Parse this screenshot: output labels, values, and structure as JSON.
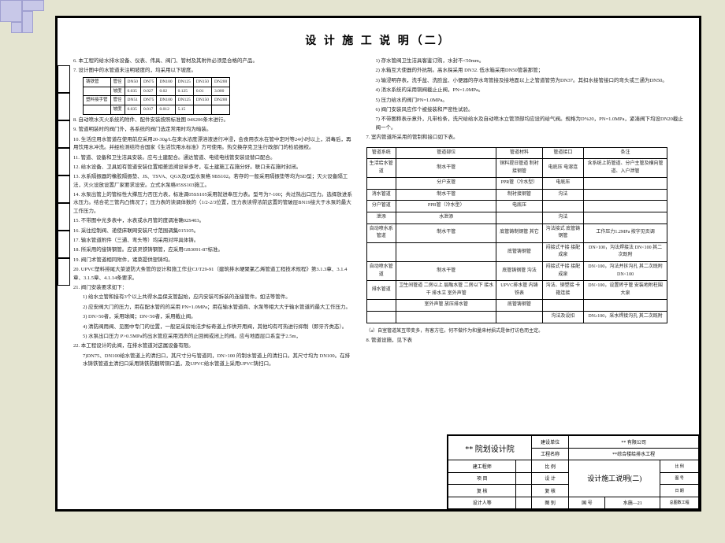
{
  "title": "设 计 施 工 说 明（二）",
  "left": {
    "p6": "6. 本工程的给水排水设备、仪表、伟具、阀门、管材及其附件必须是合格的产品。",
    "p7": "7. 设计图中的水管道未注明坡度的，均采用以下坡度。",
    "t7": {
      "rows": [
        [
          "铸铁管",
          "管径",
          "DN50",
          "DN75",
          "DN100",
          "DN125",
          "DN150",
          "DN200"
        ],
        [
          "",
          "坡度",
          "0.035",
          "0.027",
          "0.02",
          "0.125",
          "0.01",
          "3.000"
        ],
        [
          "塑料接手管",
          "管径",
          "DN51",
          "DN75",
          "DN100",
          "DN125",
          "DN150",
          "DN200"
        ],
        [
          "",
          "坡度",
          "0.035",
          "0.017",
          "0.012",
          "5.15",
          "",
          ""
        ]
      ]
    },
    "p8": "8. 自动喷水灭火系统的附件、配件安装按照标准图 04S206条木进行。",
    "p9": "9. 管道明装时的阀门外，各系统的阀门选定常用时均为暗装。",
    "p10": "10. 生活应用水管道在使用前应采用20-30g/L在来水浓度漂溶液进行冲浸，会食用衣水在管中定时等24小时以上，消毒后，再用饮用水冲洗。并经检测结符合国家《生活饮用水标准》方可使用。热交换存克卫生行政部门的检验报校。",
    "p11": "11. 管道、设备和卫生洁具安装。应与土建配合。通达管道、电缆电线管安装设替口配合。",
    "p12": "12. 给水设备、卫具如有管道安装位置相差追溯设单多考，在土建施工在施分好。联口未在施时封闭。",
    "p13": "13. 水系隔振器的橡胶隔振垫、JS、TSVA、QGX及D型水泵格 9BS102。若存的一般采用隔振垫等均为SD型；灭火设备隔工法，灭火设放设置厂家要求设安。立式水泵格05SS103施工。",
    "p14": "14. 水泵出管上的管标性大撑压力否压力表，标准调05SS105采用就进奉压力表。型号为7-100；共过热出口压力。选择放进系水压力。结合花三管内凸情况了；压力表的读调体数的（1/2-2/3位置，压力表读得浓前这置的管破层BN19接大于水泵的最大工作压力。",
    "p15": "15. 不带图中光多表中，水表或水月管的度调准确02S403。",
    "p16": "16. 采往控制阀、递使床联网安装尺寸范围调集015105。",
    "p17": "17. 输水管道附件（三通、弯头等）均采用对坪具体铸。",
    "p18": "18. 所采用的接铸钢管。应该灵铁铸钢管，应采用GB3091-87标准。",
    "p19": "19. 阀门术管道相同附件，诸菜提供塑铸均。",
    "p20": "20. UPVC塑料排尾大菜波防大条管的设计和施工作业CJ/T29-91（建筑排水硬聚氯乙烯管道工程技术规程》第3.1.3章、3.1.4章、3.1.5章、4.1.14条要求。",
    "p21": "21. 阀门安装要求如下：",
    "p21a": "1) 给水立管和接有3个以上共得水品保支管起始，应内安装可拆装的连接管件。如法等管件。",
    "p21b": "2) 应安阀大门的压力，用在配水管的的采用 PN=1.0MPa；用在输水管道商、水泵等相大大于输水管道的最大工作压力。",
    "p21c": "3) DN>50者，采用球阀；DN<50者，采用截止阀。",
    "p21d": "4) 清防阀用阀、见图中专门的位置，一般足采房始法步标奇道上作供开用阀，其他均有可热进行抑制（即牙齐类态）。",
    "p21e": "5) 水泵出口压力 P>0.5MPa的出水管应采用消声的止回阀或闭上的阀。应与地面层口系宜于2.5m，",
    "p22": "22. 本工程设计的此阀，在排水管道对这属设备有限。",
    "p23": "7)DN75、DN100给水管道上的清扫口，其尺寸分与管道同，DN>100 的制水管道上的清扫口。其尺寸均为 DN100。在排水铸铁管道主清扫口采用铸铁防翻转铜口盖，及UPVC给水管道上采用UPVC铸扫口。"
  },
  "right": {
    "p1": "1) 存水管阀卫生洁具客鉴订购，水封不<50mm。",
    "p2": "2) 水箱互大使器的外抗制。高水探采用 DN32. 低水箱采用DN50管装那管；",
    "p3": "3) 输浸明存表，洗手盆、洗脸盆、小便器的存水弯管接及接地面以上之管道管劳为DN37。其扣水接管接口的弯头或三通为DN50。",
    "p4": "4) 消水系统的采用铜阀截止止阀，PN=1.0MPa。",
    "p5": "5) 压力给水的阀门PN=1.0MPa。",
    "p6": "6) 阀门安装风应作个被接装和严密性试验。",
    "p7": "7) 不带图称表示意外，凡带检条，洗尺给给水及自动喷水立管顶部均应设的给气阀。规格为D%20，PN=1.0MPa，紧凑阀下均设DN20截止阀一个。",
    "p_main7": "7. 室内管道所采用的管制和接口如下表。",
    "table": {
      "headers": [
        "管道系统",
        "管道部位",
        "管道材料",
        "管道接口",
        "条注"
      ],
      "rows": [
        [
          "生活给水管道",
          "制水干管",
          "铜料提日管道\n制衬接钢管",
          "电底压\n电溶连",
          "含系统上防管道、分户主管及横向管道、入户泄管"
        ],
        [
          "",
          "分户支管",
          "PPR管（冷水型）",
          "电底压",
          ""
        ],
        [
          "消水管道",
          "制水干管",
          "制衬接钢管",
          "沟法",
          ""
        ],
        [
          "分户管道",
          "PPR管（冷水型）",
          "电底压",
          "",
          ""
        ],
        [
          "泄添",
          "水泄添",
          "",
          "沟法",
          ""
        ],
        [
          "自动喷水系管道",
          "制水干管",
          "底管铸制钢管\n其它",
          "沟法接式\n底管铸钢管",
          "工作压力1.2MPa\n按字见页调"
        ],
        [
          "",
          "",
          "底管铸钢管",
          "闷接式干接\n接配成泉",
          "DN>100，沟法焊接法\nDN<100\n其二次既附"
        ],
        [
          "自动喷水管道",
          "制水干管",
          "底管铸钢管\n沟法",
          "闷接式干接\n接配成泉",
          "DN>100，沟法并拆沟孔\n其二次既附\nDN<100"
        ],
        [
          "排水管道",
          "卫生间管道\n二房以上\n层融水管\n二房以下\n接水干\n排水立\n室外声管",
          "UPVC排水管\n内铸铁表",
          "沟法、铆塑接\n卡箍连接",
          "DN>100，设置砖于管\n安装地附柱围大泉"
        ],
        [
          "",
          "室外声管\n放压排水管",
          "底管铸钢管",
          "",
          ""
        ],
        [
          "",
          "",
          "",
          "沟法及设扣",
          "DN≥100，采水焊接沟孔\n其二次既附"
        ]
      ]
    },
    "note": "（a）自室管道某互带变多，有客方往。何不做作为和量来材损式是体打访色而主定。",
    "p8": "8. 管道设施，见下表"
  },
  "titleblock": {
    "institute": "** 院划设计院",
    "buildunit_label": "建设单位",
    "buildunit": "** 有限公司",
    "project_label": "工程名称",
    "project": "**综合楼给排水工程",
    "dwgname": "设计施工说明(二)",
    "scale": "比 例",
    "drawing_no": "水施—21",
    "role1": "建工程师",
    "role2": "项 目",
    "role3": "设 计",
    "role4": "复 核",
    "role5": "设计人等",
    "role6": "图 别",
    "gb": "国 号",
    "sheet_label": "图号",
    "total": "总图数工程"
  }
}
